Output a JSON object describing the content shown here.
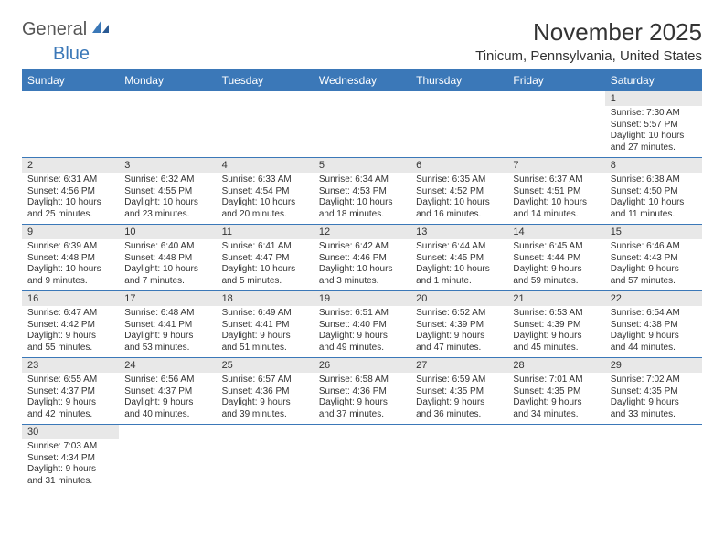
{
  "brand": {
    "general": "General",
    "blue": "Blue"
  },
  "title": "November 2025",
  "location": "Tinicum, Pennsylvania, United States",
  "colors": {
    "header_bg": "#3b78b8",
    "header_fg": "#ffffff",
    "daynum_bg": "#e8e8e8",
    "rule": "#3b78b8"
  },
  "day_headers": [
    "Sunday",
    "Monday",
    "Tuesday",
    "Wednesday",
    "Thursday",
    "Friday",
    "Saturday"
  ],
  "weeks": [
    [
      null,
      null,
      null,
      null,
      null,
      null,
      {
        "n": "1",
        "sunrise": "Sunrise: 7:30 AM",
        "sunset": "Sunset: 5:57 PM",
        "daylight": "Daylight: 10 hours and 27 minutes."
      }
    ],
    [
      {
        "n": "2",
        "sunrise": "Sunrise: 6:31 AM",
        "sunset": "Sunset: 4:56 PM",
        "daylight": "Daylight: 10 hours and 25 minutes."
      },
      {
        "n": "3",
        "sunrise": "Sunrise: 6:32 AM",
        "sunset": "Sunset: 4:55 PM",
        "daylight": "Daylight: 10 hours and 23 minutes."
      },
      {
        "n": "4",
        "sunrise": "Sunrise: 6:33 AM",
        "sunset": "Sunset: 4:54 PM",
        "daylight": "Daylight: 10 hours and 20 minutes."
      },
      {
        "n": "5",
        "sunrise": "Sunrise: 6:34 AM",
        "sunset": "Sunset: 4:53 PM",
        "daylight": "Daylight: 10 hours and 18 minutes."
      },
      {
        "n": "6",
        "sunrise": "Sunrise: 6:35 AM",
        "sunset": "Sunset: 4:52 PM",
        "daylight": "Daylight: 10 hours and 16 minutes."
      },
      {
        "n": "7",
        "sunrise": "Sunrise: 6:37 AM",
        "sunset": "Sunset: 4:51 PM",
        "daylight": "Daylight: 10 hours and 14 minutes."
      },
      {
        "n": "8",
        "sunrise": "Sunrise: 6:38 AM",
        "sunset": "Sunset: 4:50 PM",
        "daylight": "Daylight: 10 hours and 11 minutes."
      }
    ],
    [
      {
        "n": "9",
        "sunrise": "Sunrise: 6:39 AM",
        "sunset": "Sunset: 4:48 PM",
        "daylight": "Daylight: 10 hours and 9 minutes."
      },
      {
        "n": "10",
        "sunrise": "Sunrise: 6:40 AM",
        "sunset": "Sunset: 4:48 PM",
        "daylight": "Daylight: 10 hours and 7 minutes."
      },
      {
        "n": "11",
        "sunrise": "Sunrise: 6:41 AM",
        "sunset": "Sunset: 4:47 PM",
        "daylight": "Daylight: 10 hours and 5 minutes."
      },
      {
        "n": "12",
        "sunrise": "Sunrise: 6:42 AM",
        "sunset": "Sunset: 4:46 PM",
        "daylight": "Daylight: 10 hours and 3 minutes."
      },
      {
        "n": "13",
        "sunrise": "Sunrise: 6:44 AM",
        "sunset": "Sunset: 4:45 PM",
        "daylight": "Daylight: 10 hours and 1 minute."
      },
      {
        "n": "14",
        "sunrise": "Sunrise: 6:45 AM",
        "sunset": "Sunset: 4:44 PM",
        "daylight": "Daylight: 9 hours and 59 minutes."
      },
      {
        "n": "15",
        "sunrise": "Sunrise: 6:46 AM",
        "sunset": "Sunset: 4:43 PM",
        "daylight": "Daylight: 9 hours and 57 minutes."
      }
    ],
    [
      {
        "n": "16",
        "sunrise": "Sunrise: 6:47 AM",
        "sunset": "Sunset: 4:42 PM",
        "daylight": "Daylight: 9 hours and 55 minutes."
      },
      {
        "n": "17",
        "sunrise": "Sunrise: 6:48 AM",
        "sunset": "Sunset: 4:41 PM",
        "daylight": "Daylight: 9 hours and 53 minutes."
      },
      {
        "n": "18",
        "sunrise": "Sunrise: 6:49 AM",
        "sunset": "Sunset: 4:41 PM",
        "daylight": "Daylight: 9 hours and 51 minutes."
      },
      {
        "n": "19",
        "sunrise": "Sunrise: 6:51 AM",
        "sunset": "Sunset: 4:40 PM",
        "daylight": "Daylight: 9 hours and 49 minutes."
      },
      {
        "n": "20",
        "sunrise": "Sunrise: 6:52 AM",
        "sunset": "Sunset: 4:39 PM",
        "daylight": "Daylight: 9 hours and 47 minutes."
      },
      {
        "n": "21",
        "sunrise": "Sunrise: 6:53 AM",
        "sunset": "Sunset: 4:39 PM",
        "daylight": "Daylight: 9 hours and 45 minutes."
      },
      {
        "n": "22",
        "sunrise": "Sunrise: 6:54 AM",
        "sunset": "Sunset: 4:38 PM",
        "daylight": "Daylight: 9 hours and 44 minutes."
      }
    ],
    [
      {
        "n": "23",
        "sunrise": "Sunrise: 6:55 AM",
        "sunset": "Sunset: 4:37 PM",
        "daylight": "Daylight: 9 hours and 42 minutes."
      },
      {
        "n": "24",
        "sunrise": "Sunrise: 6:56 AM",
        "sunset": "Sunset: 4:37 PM",
        "daylight": "Daylight: 9 hours and 40 minutes."
      },
      {
        "n": "25",
        "sunrise": "Sunrise: 6:57 AM",
        "sunset": "Sunset: 4:36 PM",
        "daylight": "Daylight: 9 hours and 39 minutes."
      },
      {
        "n": "26",
        "sunrise": "Sunrise: 6:58 AM",
        "sunset": "Sunset: 4:36 PM",
        "daylight": "Daylight: 9 hours and 37 minutes."
      },
      {
        "n": "27",
        "sunrise": "Sunrise: 6:59 AM",
        "sunset": "Sunset: 4:35 PM",
        "daylight": "Daylight: 9 hours and 36 minutes."
      },
      {
        "n": "28",
        "sunrise": "Sunrise: 7:01 AM",
        "sunset": "Sunset: 4:35 PM",
        "daylight": "Daylight: 9 hours and 34 minutes."
      },
      {
        "n": "29",
        "sunrise": "Sunrise: 7:02 AM",
        "sunset": "Sunset: 4:35 PM",
        "daylight": "Daylight: 9 hours and 33 minutes."
      }
    ],
    [
      {
        "n": "30",
        "sunrise": "Sunrise: 7:03 AM",
        "sunset": "Sunset: 4:34 PM",
        "daylight": "Daylight: 9 hours and 31 minutes."
      },
      null,
      null,
      null,
      null,
      null,
      null
    ]
  ]
}
